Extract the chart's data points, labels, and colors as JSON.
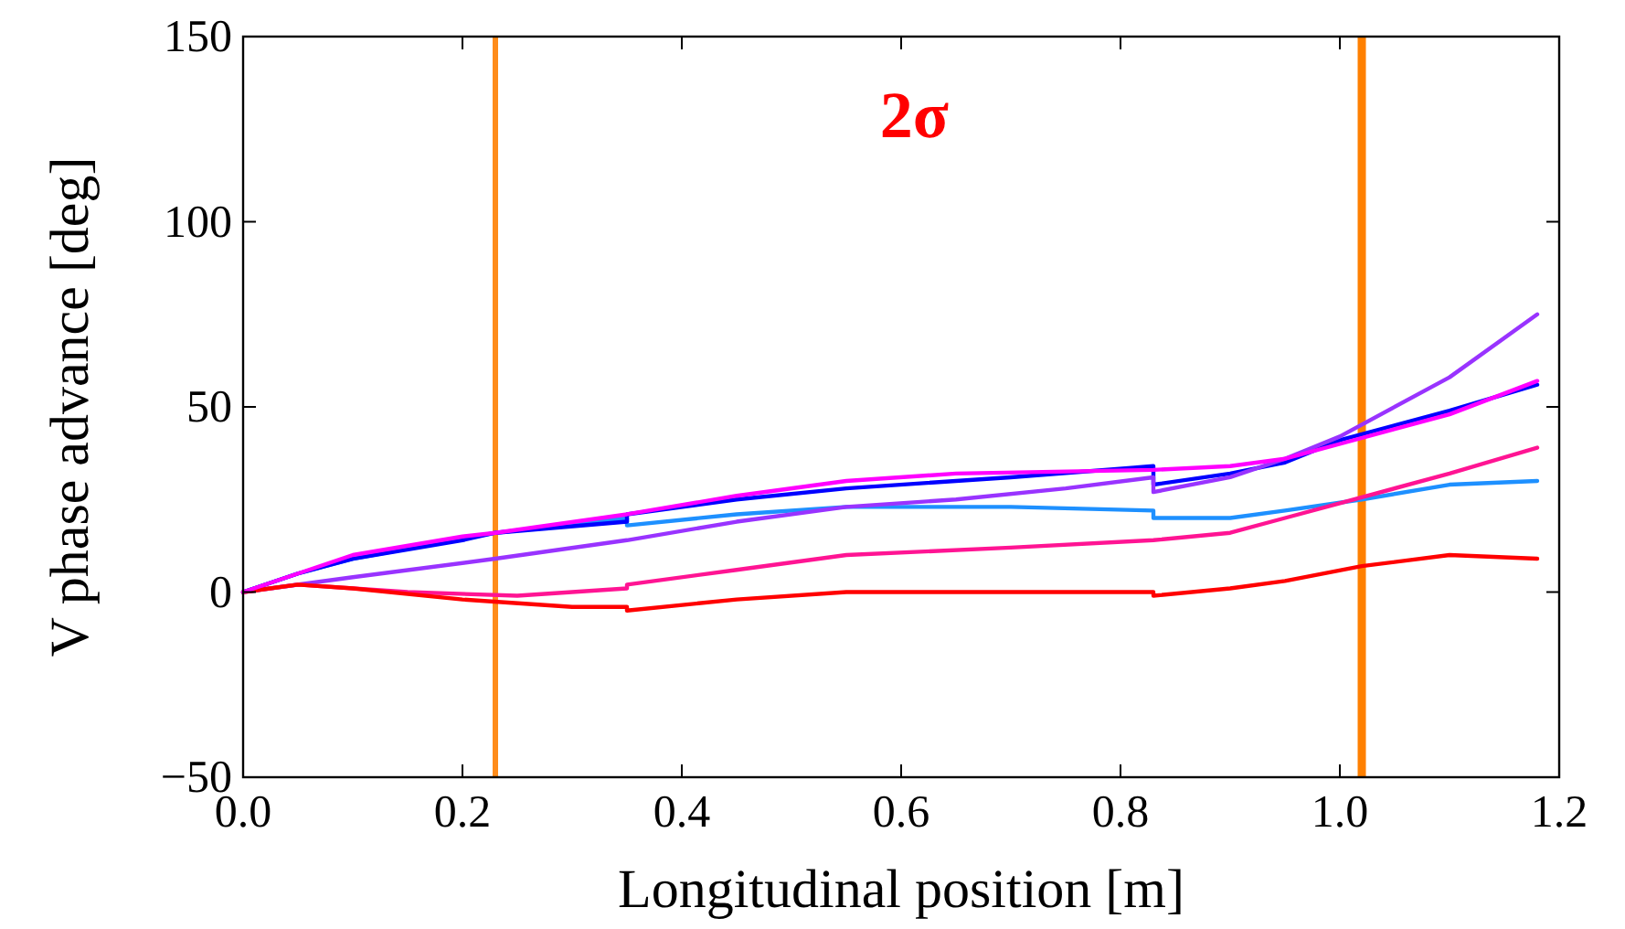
{
  "chart_data": {
    "type": "line",
    "xlabel": "Longitudinal position  [m]",
    "ylabel": "V phase advance  [deg]",
    "annotations": [
      "2σ"
    ],
    "xlim": [
      0,
      1.2
    ],
    "ylim": [
      -50,
      150
    ],
    "xticks": [
      {
        "value": 0,
        "label": "0.0"
      },
      0.2,
      0.4,
      0.6,
      0.8,
      {
        "value": 1,
        "label": "1.0"
      },
      1.2
    ],
    "yticks": [
      -50,
      0,
      50,
      100,
      150
    ],
    "grid": false,
    "marker": "none",
    "line_style": "solid",
    "ref_lines": [
      {
        "axis": "x",
        "value": 0.23,
        "color": "#ff8c1a"
      },
      {
        "axis": "x",
        "value": 1.02,
        "color": "#ff8000"
      }
    ],
    "series": [
      {
        "color": "#1e90ff",
        "x": [
          0,
          0.05,
          0.1,
          0.23,
          0.35,
          0.35,
          0.45,
          0.55,
          0.7,
          0.83,
          0.83,
          0.9,
          0.95,
          1.02,
          1.1,
          1.18
        ],
        "values": [
          0,
          5,
          9,
          16,
          20,
          18,
          21,
          23,
          23,
          22,
          20,
          20,
          22,
          25,
          29,
          30
        ]
      },
      {
        "color": "#0000ff",
        "x": [
          0,
          0.05,
          0.1,
          0.2,
          0.23,
          0.35,
          0.35,
          0.45,
          0.55,
          0.7,
          0.83,
          0.83,
          0.9,
          0.95,
          1.0,
          1.1,
          1.18
        ],
        "values": [
          0,
          5,
          9,
          14,
          16,
          19,
          21,
          25,
          28,
          31,
          34,
          29,
          32,
          35,
          41,
          49,
          56
        ]
      },
      {
        "color": "#9933ff",
        "x": [
          0,
          0.1,
          0.23,
          0.35,
          0.45,
          0.55,
          0.65,
          0.75,
          0.83,
          0.83,
          0.9,
          0.95,
          1.0,
          1.1,
          1.18
        ],
        "values": [
          0,
          4,
          9,
          14,
          19,
          23,
          25,
          28,
          31,
          27,
          31,
          36,
          42,
          58,
          75
        ]
      },
      {
        "color": "#ff1493",
        "x": [
          0,
          0.05,
          0.15,
          0.25,
          0.35,
          0.35,
          0.45,
          0.55,
          0.7,
          0.83,
          0.9,
          0.95,
          1.0,
          1.1,
          1.18
        ],
        "values": [
          0,
          2,
          0,
          -1,
          1,
          2,
          6,
          10,
          12,
          14,
          16,
          20,
          24,
          32,
          39
        ]
      },
      {
        "color": "#ff0000",
        "x": [
          0,
          0.05,
          0.1,
          0.2,
          0.3,
          0.35,
          0.35,
          0.45,
          0.55,
          0.7,
          0.83,
          0.83,
          0.9,
          0.95,
          1.02,
          1.1,
          1.18
        ],
        "values": [
          0,
          2,
          1,
          -2,
          -4,
          -4,
          -5,
          -2,
          0,
          0,
          0,
          -1,
          1,
          3,
          7,
          10,
          9
        ]
      },
      {
        "color": "#ff00ff",
        "x": [
          0,
          0.05,
          0.1,
          0.2,
          0.23,
          0.35,
          0.45,
          0.55,
          0.65,
          0.83,
          0.9,
          0.95,
          1.0,
          1.1,
          1.18
        ],
        "values": [
          0,
          5,
          10,
          15,
          16,
          21,
          26,
          30,
          32,
          33,
          34,
          36,
          40,
          48,
          57
        ]
      }
    ]
  }
}
